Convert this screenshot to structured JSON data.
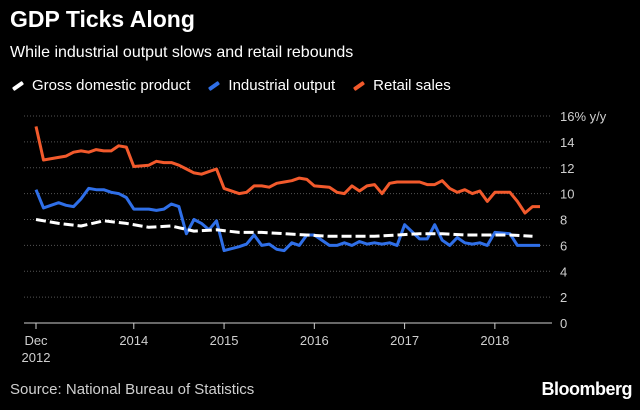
{
  "header": {
    "title": "GDP Ticks Along",
    "subtitle": "While industrial output slows and retail rebounds"
  },
  "footer": {
    "source": "Source: National Bureau of Statistics",
    "brand": "Bloomberg"
  },
  "colors": {
    "gdp": "#ffffff",
    "industrial": "#2f6fe8",
    "retail": "#f25a2c",
    "grid": "#555555",
    "axis": "#cfcfcf"
  },
  "chart_data": {
    "type": "line",
    "title": "GDP Ticks Along",
    "subtitle": "While industrial output slows and retail rebounds",
    "unit_label": "% y/y",
    "ylim": [
      0,
      16
    ],
    "yticks": [
      0,
      2,
      4,
      6,
      8,
      10,
      12,
      14,
      16
    ],
    "xlim": [
      "2012-12",
      "2018-07"
    ],
    "x_ticks": [
      {
        "x": "2012-12",
        "label": "Dec",
        "label2": "2012"
      },
      {
        "x": "2014-01",
        "label": "2014",
        "label2": ""
      },
      {
        "x": "2015-01",
        "label": "2015",
        "label2": ""
      },
      {
        "x": "2016-01",
        "label": "2016",
        "label2": ""
      },
      {
        "x": "2017-01",
        "label": "2017",
        "label2": ""
      },
      {
        "x": "2018-01",
        "label": "2018",
        "label2": ""
      }
    ],
    "grid": "horizontal",
    "legend": "top-left",
    "series": [
      {
        "name": "Gross domestic product",
        "style": "dashed",
        "x": [
          "2012-12",
          "2013-03",
          "2013-06",
          "2013-09",
          "2013-12",
          "2014-03",
          "2014-06",
          "2014-09",
          "2014-12",
          "2015-03",
          "2015-06",
          "2015-09",
          "2015-12",
          "2016-03",
          "2016-06",
          "2016-09",
          "2016-12",
          "2017-03",
          "2017-06",
          "2017-09",
          "2017-12",
          "2018-03",
          "2018-06"
        ],
        "values": [
          8.0,
          7.7,
          7.5,
          7.9,
          7.7,
          7.4,
          7.5,
          7.1,
          7.2,
          7.0,
          7.0,
          6.9,
          6.8,
          6.7,
          6.7,
          6.7,
          6.8,
          6.9,
          6.9,
          6.8,
          6.8,
          6.8,
          6.7
        ]
      },
      {
        "name": "Industrial output",
        "style": "solid",
        "x": [
          "2012-12",
          "2013-01",
          "2013-03",
          "2013-04",
          "2013-05",
          "2013-06",
          "2013-07",
          "2013-08",
          "2013-09",
          "2013-10",
          "2013-11",
          "2013-12",
          "2014-01",
          "2014-03",
          "2014-04",
          "2014-05",
          "2014-06",
          "2014-07",
          "2014-08",
          "2014-09",
          "2014-10",
          "2014-11",
          "2014-12",
          "2015-01",
          "2015-03",
          "2015-04",
          "2015-05",
          "2015-06",
          "2015-07",
          "2015-08",
          "2015-09",
          "2015-10",
          "2015-11",
          "2015-12",
          "2016-01",
          "2016-03",
          "2016-04",
          "2016-05",
          "2016-06",
          "2016-07",
          "2016-08",
          "2016-09",
          "2016-10",
          "2016-11",
          "2016-12",
          "2017-01",
          "2017-03",
          "2017-04",
          "2017-05",
          "2017-06",
          "2017-07",
          "2017-08",
          "2017-09",
          "2017-10",
          "2017-11",
          "2017-12",
          "2018-01",
          "2018-03",
          "2018-04",
          "2018-05",
          "2018-06",
          "2018-07"
        ],
        "values": [
          10.3,
          8.9,
          9.3,
          9.1,
          9.0,
          9.6,
          10.4,
          10.3,
          10.3,
          10.1,
          10.0,
          9.7,
          8.8,
          8.8,
          8.7,
          8.8,
          9.2,
          9.0,
          6.9,
          8.0,
          7.7,
          7.2,
          7.9,
          5.6,
          5.9,
          6.1,
          6.8,
          6.0,
          6.1,
          5.7,
          5.6,
          6.2,
          6.0,
          6.8,
          6.8,
          6.0,
          6.0,
          6.2,
          6.0,
          6.3,
          6.1,
          6.2,
          6.1,
          6.2,
          6.0,
          7.6,
          6.5,
          6.5,
          7.6,
          6.4,
          6.0,
          6.6,
          6.2,
          6.1,
          6.2,
          6.0,
          7.0,
          6.9,
          6.0,
          6.0,
          6.0,
          6.0
        ]
      },
      {
        "name": "Retail sales",
        "style": "solid",
        "x": [
          "2012-12",
          "2013-01",
          "2013-03",
          "2013-04",
          "2013-05",
          "2013-06",
          "2013-07",
          "2013-08",
          "2013-09",
          "2013-10",
          "2013-11",
          "2013-12",
          "2014-01",
          "2014-03",
          "2014-04",
          "2014-05",
          "2014-06",
          "2014-07",
          "2014-08",
          "2014-09",
          "2014-10",
          "2014-11",
          "2014-12",
          "2015-01",
          "2015-03",
          "2015-04",
          "2015-05",
          "2015-06",
          "2015-07",
          "2015-08",
          "2015-09",
          "2015-10",
          "2015-11",
          "2015-12",
          "2016-01",
          "2016-03",
          "2016-04",
          "2016-05",
          "2016-06",
          "2016-07",
          "2016-08",
          "2016-09",
          "2016-10",
          "2016-11",
          "2016-12",
          "2017-01",
          "2017-03",
          "2017-04",
          "2017-05",
          "2017-06",
          "2017-07",
          "2017-08",
          "2017-09",
          "2017-10",
          "2017-11",
          "2017-12",
          "2018-01",
          "2018-03",
          "2018-04",
          "2018-05",
          "2018-06",
          "2018-07"
        ],
        "values": [
          15.2,
          12.6,
          12.8,
          12.9,
          13.2,
          13.3,
          13.2,
          13.4,
          13.3,
          13.3,
          13.7,
          13.6,
          12.1,
          12.2,
          12.5,
          12.4,
          12.4,
          12.2,
          11.9,
          11.6,
          11.5,
          11.7,
          11.9,
          10.4,
          10.0,
          10.1,
          10.6,
          10.6,
          10.5,
          10.8,
          10.9,
          11.0,
          11.2,
          11.1,
          10.6,
          10.5,
          10.1,
          10.0,
          10.6,
          10.2,
          10.6,
          10.7,
          10.0,
          10.8,
          10.9,
          10.9,
          10.9,
          10.7,
          10.7,
          11.0,
          10.4,
          10.1,
          10.3,
          10.0,
          10.2,
          9.4,
          10.1,
          10.1,
          9.4,
          8.5,
          9.0,
          9.0
        ]
      }
    ]
  }
}
